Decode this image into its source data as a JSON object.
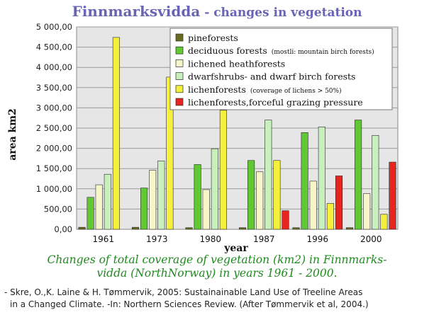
{
  "title": {
    "main": "Finnmarksvidda",
    "sub": " - changes in vegetation"
  },
  "chart_data": {
    "type": "bar",
    "title": "Finnmarksvidda - changes in vegetation",
    "xlabel": "year",
    "ylabel": "area km2",
    "ylim": [
      0,
      5000
    ],
    "yticks": [
      "0,00",
      "500,00",
      "1000,00",
      "1500,00",
      "2000,00",
      "2500,00",
      "3000,00",
      "3500,00",
      "4000,00",
      "4500,00",
      "5000,00"
    ],
    "grid": true,
    "legend_position": "top-right",
    "categories": [
      "1961",
      "1973",
      "1980",
      "1987",
      "1996",
      "2000"
    ],
    "series": [
      {
        "name": "pineforests",
        "note": "",
        "color": "#6b6b1e",
        "values": [
          50,
          50,
          40,
          40,
          40,
          40
        ]
      },
      {
        "name": "deciduous forests",
        "note": "(mostli: mountain birch forests)",
        "color": "#5fc832",
        "values": [
          790,
          1020,
          1600,
          1700,
          2390,
          2700
        ]
      },
      {
        "name": "lichened heathforests",
        "note": "",
        "color": "#f6f6c8",
        "values": [
          1100,
          1460,
          980,
          1420,
          1190,
          880
        ]
      },
      {
        "name": "dwarfshrubs- and dwarf birch forests",
        "note": "",
        "color": "#c8f0bc",
        "values": [
          1360,
          1690,
          1990,
          2700,
          2530,
          2320
        ]
      },
      {
        "name": "lichenforests",
        "note": "(coverage of lichens  > 50%)",
        "color": "#f4f03c",
        "values": [
          4740,
          3760,
          2940,
          1700,
          640,
          370
        ]
      },
      {
        "name": "lichenforests,forceful grazing pressure",
        "note": "",
        "color": "#e8241e",
        "values": [
          0,
          0,
          0,
          460,
          1320,
          1660
        ]
      }
    ]
  },
  "caption": {
    "line1": "Changes of total coverage of vegetation (km2) in Finnmarks-",
    "line2": "vidda (NorthNorway) in years 1961 - 2000."
  },
  "reference": {
    "line1": "- Skre, O.,K. Laine & H. Tømmervik, 2005: Sustainainable Land Use of Treeline Areas",
    "line2": "  in a Changed Climate. -In: Northern Sciences Review. (After Tømmervik et al, 2004.)"
  }
}
